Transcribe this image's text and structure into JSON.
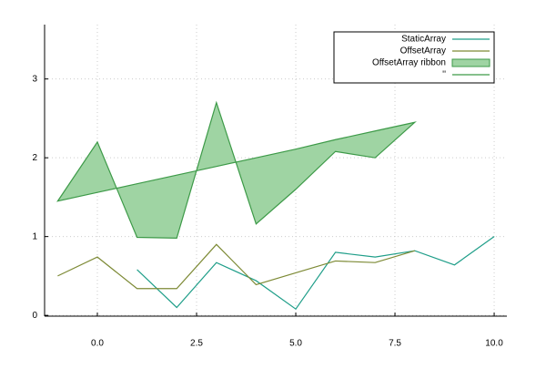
{
  "chart_data": {
    "type": "line",
    "xlim": [
      -1.33,
      10.32
    ],
    "ylim": [
      -0.01,
      3.69
    ],
    "xticks": [
      {
        "value": 0,
        "label": "0.0"
      },
      {
        "value": 2.5,
        "label": "2.5"
      },
      {
        "value": 5,
        "label": "5.0"
      },
      {
        "value": 7.5,
        "label": "7.5"
      },
      {
        "value": 10,
        "label": "10.0"
      }
    ],
    "yticks": [
      0,
      1,
      2,
      3
    ],
    "grid": true,
    "legend": "top-right",
    "series": [
      {
        "name": "StaticArray",
        "type": "line",
        "color": "#1f9e89",
        "x": [
          1,
          2,
          3,
          4,
          5,
          6,
          7,
          8,
          9,
          10
        ],
        "values": [
          0.58,
          0.1,
          0.67,
          0.44,
          0.08,
          0.8,
          0.74,
          0.82,
          0.64,
          1.0
        ]
      },
      {
        "name": "OffsetArray",
        "type": "line",
        "color": "#7d8a35",
        "x": [
          -1,
          0,
          1,
          2,
          3,
          4,
          5,
          6,
          7,
          8
        ],
        "values": [
          0.5,
          0.74,
          0.34,
          0.34,
          0.9,
          0.39,
          0.54,
          0.69,
          0.67,
          0.82
        ]
      },
      {
        "name": "OffsetArray ribbon",
        "type": "ribbon",
        "color": "#9fd4a3",
        "x": [
          -1,
          0,
          1,
          2,
          3,
          4,
          5,
          6,
          7,
          8
        ],
        "values": [
          1.45,
          2.2,
          0.99,
          0.98,
          2.7,
          1.16,
          1.6,
          2.08,
          2.0,
          2.45
        ],
        "base": [
          1.45,
          1.56,
          1.67,
          1.78,
          1.89,
          2.0,
          2.11,
          2.23,
          2.34,
          2.45
        ]
      },
      {
        "name": "''",
        "type": "outline",
        "color": "#3d9a48"
      }
    ]
  }
}
